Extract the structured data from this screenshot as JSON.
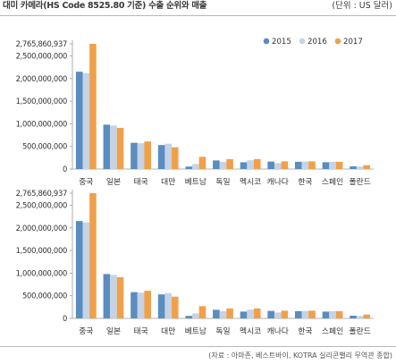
{
  "header": {
    "title": "대미 카메라(HS Code 8525.80 기준) 수출 순위와 매출",
    "unit": "(단위 : US 달러)"
  },
  "footer": {
    "source": "(자료 : 아마존, 베스트바이, KOTRA 실리콘밸리 무역관 종합)"
  },
  "colors": {
    "2015": "#5b8cbf",
    "2016": "#c4d3e6",
    "2017": "#f0a04a",
    "axis": "#9a9a9a",
    "text": "#333333"
  },
  "chart_data": [
    {
      "type": "bar",
      "title": "",
      "xlabel": "",
      "ylabel": "",
      "legend_position": "top-right",
      "grid": false,
      "categories": [
        "중국",
        "일본",
        "태국",
        "대만",
        "베트남",
        "독일",
        "멕시코",
        "캐나다",
        "한국",
        "스페인",
        "폴란드"
      ],
      "yticks": [
        0,
        500000000,
        1000000000,
        1500000000,
        2000000000,
        2500000000,
        2765860937
      ],
      "ytick_labels": [
        "0",
        "500,000,000",
        "1,000,000,000",
        "1,500,000,000",
        "2,000,000,000",
        "2,500,000,000",
        "2,765,860,937"
      ],
      "ylim": [
        0,
        2765860937
      ],
      "series": [
        {
          "name": "2015",
          "values": [
            2150000000,
            980000000,
            580000000,
            530000000,
            55000000,
            190000000,
            150000000,
            165000000,
            160000000,
            150000000,
            60000000
          ]
        },
        {
          "name": "2016",
          "values": [
            2120000000,
            960000000,
            570000000,
            560000000,
            110000000,
            160000000,
            195000000,
            130000000,
            165000000,
            160000000,
            55000000
          ]
        },
        {
          "name": "2017",
          "values": [
            2765860937,
            910000000,
            610000000,
            480000000,
            270000000,
            220000000,
            220000000,
            170000000,
            170000000,
            160000000,
            85000000
          ]
        }
      ]
    },
    {
      "type": "bar",
      "title": "",
      "xlabel": "",
      "ylabel": "",
      "legend_position": "",
      "grid": false,
      "categories": [
        "중국",
        "일본",
        "태국",
        "대만",
        "베트남",
        "독일",
        "멕시코",
        "캐나다",
        "한국",
        "스페인",
        "폴란드"
      ],
      "yticks": [
        0,
        500000000,
        1000000000,
        1500000000,
        2000000000,
        2500000000,
        2765860937
      ],
      "ytick_labels": [
        "0",
        "500,000,000",
        "1,000,000,000",
        "1,500,000,000",
        "2,000,000,000",
        "2,500,000,000",
        "2,765,860,937"
      ],
      "ylim": [
        0,
        2765860937
      ],
      "series": [
        {
          "name": "2015",
          "values": [
            2150000000,
            980000000,
            580000000,
            530000000,
            55000000,
            190000000,
            150000000,
            165000000,
            160000000,
            150000000,
            60000000
          ]
        },
        {
          "name": "2016",
          "values": [
            2120000000,
            960000000,
            570000000,
            560000000,
            110000000,
            160000000,
            195000000,
            130000000,
            165000000,
            160000000,
            55000000
          ]
        },
        {
          "name": "2017",
          "values": [
            2765860937,
            910000000,
            610000000,
            480000000,
            270000000,
            220000000,
            220000000,
            170000000,
            170000000,
            160000000,
            85000000
          ]
        }
      ]
    }
  ]
}
